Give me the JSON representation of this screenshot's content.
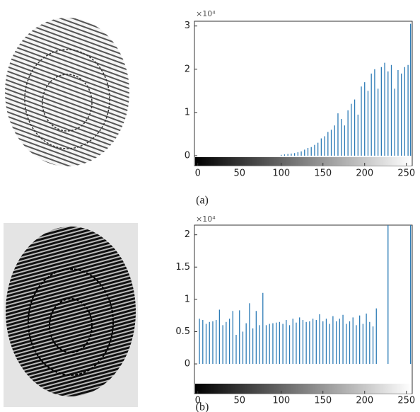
{
  "chart_data": [
    {
      "type": "bar",
      "caption": "(a)",
      "y_exponent_label": "×10⁴",
      "color": "#2c7bb6",
      "x": [
        100,
        104,
        108,
        112,
        116,
        120,
        124,
        128,
        132,
        136,
        140,
        144,
        148,
        152,
        156,
        160,
        164,
        168,
        172,
        176,
        180,
        184,
        188,
        192,
        196,
        200,
        204,
        208,
        212,
        216,
        220,
        224,
        228,
        232,
        236,
        240,
        244,
        248,
        252,
        255
      ],
      "values": [
        0.02,
        0.03,
        0.04,
        0.05,
        0.06,
        0.08,
        0.1,
        0.14,
        0.18,
        0.2,
        0.25,
        0.3,
        0.4,
        0.45,
        0.55,
        0.6,
        0.7,
        0.98,
        0.85,
        0.7,
        1.05,
        1.2,
        1.3,
        0.95,
        1.6,
        1.7,
        1.5,
        1.9,
        2.0,
        1.55,
        2.05,
        2.15,
        1.95,
        2.1,
        1.55,
        1.98,
        1.9,
        2.05,
        2.1,
        3.05
      ],
      "xlim": [
        -4,
        257
      ],
      "xticks": [
        0,
        50,
        100,
        150,
        200,
        250
      ],
      "ylim": [
        -0.23,
        3.11
      ],
      "yticks": [
        0,
        1,
        2,
        3
      ]
    },
    {
      "type": "bar",
      "caption": "(b)",
      "y_exponent_label": "×10⁴",
      "color": "#2c7bb6",
      "x": [
        2,
        6,
        10,
        14,
        18,
        22,
        26,
        30,
        34,
        38,
        42,
        46,
        50,
        54,
        58,
        62,
        66,
        70,
        74,
        78,
        82,
        86,
        90,
        94,
        98,
        102,
        106,
        110,
        114,
        118,
        122,
        126,
        130,
        134,
        138,
        142,
        146,
        150,
        154,
        158,
        162,
        166,
        170,
        174,
        178,
        182,
        186,
        190,
        194,
        198,
        202,
        206,
        210,
        214,
        228,
        255
      ],
      "values": [
        0.7,
        0.68,
        0.62,
        0.65,
        0.66,
        0.68,
        0.84,
        0.6,
        0.65,
        0.7,
        0.82,
        0.45,
        0.83,
        0.5,
        0.63,
        0.94,
        0.55,
        0.82,
        0.6,
        1.1,
        0.6,
        0.62,
        0.63,
        0.64,
        0.65,
        0.62,
        0.68,
        0.6,
        0.7,
        0.64,
        0.72,
        0.68,
        0.65,
        0.66,
        0.7,
        0.68,
        0.77,
        0.66,
        0.7,
        0.62,
        0.74,
        0.66,
        0.7,
        0.76,
        0.62,
        0.66,
        0.72,
        0.6,
        0.75,
        0.62,
        0.78,
        0.65,
        0.58,
        0.86,
        2.15,
        2.15
      ],
      "xlim": [
        -4,
        257
      ],
      "xticks": [
        0,
        50,
        100,
        150,
        200,
        250
      ],
      "ylim": [
        -0.46,
        2.15
      ],
      "yticks": [
        0,
        0.5,
        1,
        1.5,
        2
      ]
    }
  ]
}
